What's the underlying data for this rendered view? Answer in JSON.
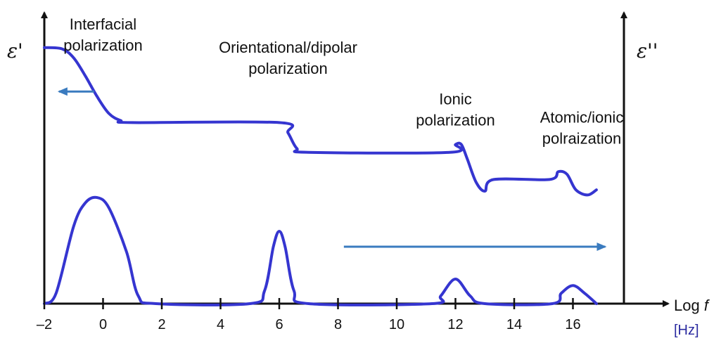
{
  "chart_data": {
    "type": "line",
    "title": "",
    "xlabel_prefix": "Log ",
    "xlabel_var": "f",
    "xunit": "[Hz]",
    "ylabel_left": "ε'",
    "ylabel_right": "ε''",
    "xlim": [
      -2,
      18.7
    ],
    "x_ticks": [
      -2,
      0,
      2,
      4,
      6,
      8,
      10,
      12,
      14,
      16
    ],
    "x_tick_labels": [
      "–2",
      "0",
      "2",
      "4",
      "6",
      "8",
      "10",
      "12",
      "14",
      "16"
    ],
    "grid": false,
    "colors": {
      "curve": "#3535d0",
      "arrow": "#3a7bbf",
      "axis": "#111111",
      "unit": "#2a2aa0"
    },
    "series": [
      {
        "role": "real-permittivity",
        "points": [
          [
            -2,
            0.99
          ],
          [
            -1.4,
            0.985
          ],
          [
            -1,
            0.95
          ],
          [
            -0.6,
            0.88
          ],
          [
            -0.2,
            0.8
          ],
          [
            0.2,
            0.735
          ],
          [
            0.6,
            0.708
          ],
          [
            1,
            0.7
          ],
          [
            6,
            0.7
          ],
          [
            6.3,
            0.66
          ],
          [
            6.6,
            0.6
          ],
          [
            7,
            0.585
          ],
          [
            11.8,
            0.585
          ],
          [
            12,
            0.615
          ],
          [
            12.2,
            0.615
          ],
          [
            12.4,
            0.56
          ],
          [
            12.7,
            0.47
          ],
          [
            13,
            0.435
          ],
          [
            13.3,
            0.48
          ],
          [
            15.2,
            0.48
          ],
          [
            15.5,
            0.51
          ],
          [
            15.8,
            0.5
          ],
          [
            16.1,
            0.44
          ],
          [
            16.5,
            0.42
          ],
          [
            16.8,
            0.44
          ]
        ]
      },
      {
        "role": "imaginary-permittivity",
        "points": [
          [
            -2,
            0
          ],
          [
            -1.6,
            0.04
          ],
          [
            -1,
            0.3
          ],
          [
            -0.6,
            0.39
          ],
          [
            -0.2,
            0.41
          ],
          [
            0.2,
            0.37
          ],
          [
            0.8,
            0.2
          ],
          [
            1.2,
            0.03
          ],
          [
            1.8,
            0
          ],
          [
            5,
            0
          ],
          [
            5.5,
            0.05
          ],
          [
            5.8,
            0.22
          ],
          [
            6,
            0.28
          ],
          [
            6.2,
            0.22
          ],
          [
            6.5,
            0.05
          ],
          [
            7,
            0
          ],
          [
            11.2,
            0
          ],
          [
            11.5,
            0.03
          ],
          [
            12,
            0.095
          ],
          [
            12.5,
            0.03
          ],
          [
            13,
            0
          ],
          [
            15.3,
            0
          ],
          [
            15.6,
            0.04
          ],
          [
            16,
            0.07
          ],
          [
            16.4,
            0.04
          ],
          [
            16.8,
            0
          ]
        ]
      }
    ],
    "annotations": [
      {
        "lines": [
          "Interfacial",
          "polarization"
        ],
        "x": 0.0,
        "y": 1.06
      },
      {
        "lines": [
          "Orientational/dipolar",
          "polarization"
        ],
        "x": 6.3,
        "y": 0.97
      },
      {
        "lines": [
          "Ionic",
          "polarization"
        ],
        "x": 12.0,
        "y": 0.77
      },
      {
        "lines": [
          "Atomic/ionic",
          "polraization"
        ],
        "x": 16.3,
        "y": 0.7
      }
    ],
    "arrows": [
      {
        "from": [
          -0.3,
          0.82
        ],
        "to": [
          -1.5,
          0.82
        ]
      },
      {
        "from": [
          8.2,
          0.22
        ],
        "to": [
          17.1,
          0.22
        ]
      }
    ]
  }
}
